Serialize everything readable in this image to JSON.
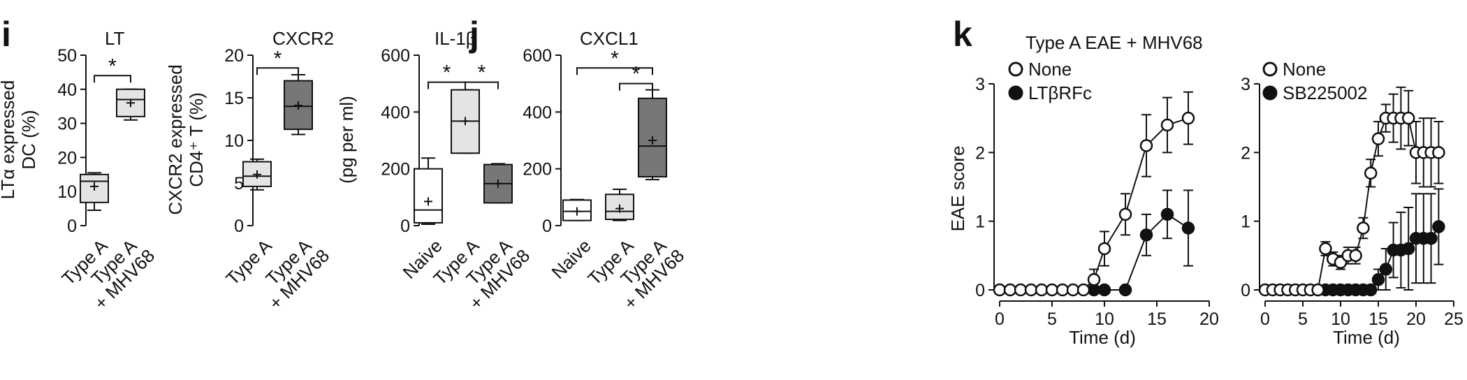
{
  "panel_labels": [
    "i",
    "j",
    "k"
  ],
  "chart_data": [
    {
      "id": "LT",
      "panel": "i",
      "type": "box",
      "title": "LT",
      "ylabel": [
        "LTα expressed",
        "DC (%)"
      ],
      "ylim": [
        0,
        50
      ],
      "yticks": [
        0,
        10,
        20,
        30,
        40,
        50
      ],
      "categories": [
        [
          "Type A"
        ],
        [
          "Type A",
          "+ MHV68"
        ]
      ],
      "boxes": [
        {
          "min": 4.5,
          "q1": 6.8,
          "median": 13.0,
          "q3": 15.0,
          "max": 15.5,
          "mean": 11.5,
          "fill": "#e4e4e4"
        },
        {
          "min": 31.0,
          "q1": 32.0,
          "median": 37.0,
          "q3": 40.0,
          "max": 40.0,
          "mean": 36.0,
          "fill": "#e4e4e4"
        }
      ],
      "significance": [
        {
          "from": 0,
          "to": 1,
          "y": 44,
          "label": "*"
        }
      ]
    },
    {
      "id": "CXCR2",
      "panel": "i",
      "type": "box",
      "title": "CXCR2",
      "ylabel": [
        "CXCR2 expressed",
        "CD4⁺ T (%)"
      ],
      "ylim": [
        0,
        20
      ],
      "yticks": [
        0,
        5,
        10,
        15,
        20
      ],
      "categories": [
        [
          "Type A"
        ],
        [
          "Type A",
          "+ MHV68"
        ]
      ],
      "boxes": [
        {
          "min": 4.2,
          "q1": 4.6,
          "median": 5.8,
          "q3": 7.5,
          "max": 7.8,
          "mean": 6.0,
          "fill": "#e4e4e4"
        },
        {
          "min": 10.7,
          "q1": 11.3,
          "median": 14.0,
          "q3": 17.0,
          "max": 17.7,
          "mean": 14.1,
          "fill": "#777777"
        }
      ],
      "significance": [
        {
          "from": 0,
          "to": 1,
          "y": 18.5,
          "label": "*"
        }
      ]
    },
    {
      "id": "IL-1b",
      "panel": "j",
      "type": "box",
      "title": "IL-1β",
      "ylabel": [
        "(pg per ml)"
      ],
      "ylim": [
        0,
        600
      ],
      "yticks": [
        0,
        200,
        400,
        600
      ],
      "categories": [
        [
          "Naive"
        ],
        [
          "Type A"
        ],
        [
          "Type A",
          "+ MHV68"
        ]
      ],
      "boxes": [
        {
          "min": 5,
          "q1": 10,
          "median": 55,
          "q3": 200,
          "max": 238,
          "mean": 85,
          "fill": "#ffffff"
        },
        {
          "min": 255,
          "q1": 255,
          "median": 368,
          "q3": 478,
          "max": 478,
          "mean": 368,
          "fill": "#e4e4e4"
        },
        {
          "min": 80,
          "q1": 80,
          "median": 148,
          "q3": 215,
          "max": 218,
          "mean": 148,
          "fill": "#777777"
        }
      ],
      "significance": [
        {
          "from": 0,
          "to": 1,
          "y": 505,
          "label": "*"
        },
        {
          "from": 1,
          "to": 2,
          "y": 505,
          "label": "*"
        }
      ]
    },
    {
      "id": "CXCL1",
      "panel": "j",
      "type": "box",
      "title": "CXCL1",
      "ylabel": [],
      "ylim": [
        0,
        600
      ],
      "yticks": [
        0,
        200,
        400,
        600
      ],
      "categories": [
        [
          "Naive"
        ],
        [
          "Type A"
        ],
        [
          "Type A",
          "+ MHV68"
        ]
      ],
      "boxes": [
        {
          "min": 18,
          "q1": 18,
          "median": 50,
          "q3": 90,
          "max": 92,
          "mean": 50,
          "fill": "#ffffff"
        },
        {
          "min": 18,
          "q1": 22,
          "median": 50,
          "q3": 110,
          "max": 128,
          "mean": 60,
          "fill": "#e4e4e4"
        },
        {
          "min": 162,
          "q1": 172,
          "median": 280,
          "q3": 448,
          "max": 478,
          "mean": 300,
          "fill": "#777777"
        }
      ],
      "significance": [
        {
          "from": 0,
          "to": 2,
          "y": 555,
          "label": "*"
        },
        {
          "from": 1,
          "to": 2,
          "y": 500,
          "label": "*"
        }
      ]
    },
    {
      "id": "EAE-LTbRFc",
      "panel": "k",
      "type": "line",
      "title": "Type A EAE + MHV68",
      "xlabel": "Time (d)",
      "ylabel": "EAE score",
      "xlim": [
        0,
        20
      ],
      "xticks": [
        0,
        5,
        10,
        15,
        20
      ],
      "ylim": [
        0,
        3
      ],
      "yticks": [
        0,
        1,
        2,
        3
      ],
      "series": [
        {
          "name": "None",
          "marker": "open",
          "x": [
            0,
            1,
            2,
            3,
            4,
            5,
            6,
            7,
            8,
            9,
            10,
            12,
            14,
            16,
            18
          ],
          "y": [
            0,
            0,
            0,
            0,
            0,
            0,
            0,
            0,
            0,
            0.15,
            0.6,
            1.1,
            2.1,
            2.4,
            2.5
          ],
          "err": [
            0,
            0,
            0,
            0,
            0,
            0,
            0,
            0,
            0,
            0.15,
            0.25,
            0.3,
            0.45,
            0.4,
            0.38
          ]
        },
        {
          "name": "LTβRFc",
          "marker": "filled",
          "x": [
            9,
            10,
            12,
            14,
            16,
            18
          ],
          "y": [
            0,
            0,
            0,
            0.8,
            1.1,
            0.9
          ],
          "err": [
            0,
            0,
            0,
            0.3,
            0.35,
            0.55
          ]
        }
      ]
    },
    {
      "id": "EAE-SB225002",
      "panel": "k",
      "type": "line",
      "title": "",
      "xlabel": "Time (d)",
      "ylabel": "",
      "xlim": [
        0,
        25
      ],
      "xticks": [
        0,
        5,
        10,
        15,
        20,
        25
      ],
      "ylim": [
        0,
        3
      ],
      "yticks": [
        0,
        1,
        2,
        3
      ],
      "series": [
        {
          "name": "None",
          "marker": "open",
          "x": [
            0,
            1,
            2,
            3,
            4,
            5,
            6,
            7,
            8,
            9,
            10,
            11,
            12,
            13,
            14,
            15,
            16,
            17,
            18,
            19,
            20,
            21,
            22,
            23
          ],
          "y": [
            0,
            0,
            0,
            0,
            0,
            0,
            0,
            0,
            0.6,
            0.45,
            0.4,
            0.5,
            0.5,
            0.9,
            1.7,
            2.2,
            2.5,
            2.5,
            2.5,
            2.5,
            2.0,
            2.0,
            2.0,
            2.0
          ],
          "err": [
            0,
            0,
            0,
            0,
            0,
            0,
            0,
            0,
            0.1,
            0.1,
            0.1,
            0.12,
            0.12,
            0.15,
            0.2,
            0.25,
            0.2,
            0.35,
            0.45,
            0.4,
            0.45,
            0.5,
            0.5,
            0.45
          ]
        },
        {
          "name": "SB225002",
          "marker": "filled",
          "x": [
            7,
            8,
            9,
            10,
            11,
            12,
            13,
            14,
            15,
            16,
            17,
            18,
            19,
            20,
            21,
            22,
            23
          ],
          "y": [
            0,
            0,
            0,
            0,
            0,
            0,
            0,
            0,
            0.15,
            0.3,
            0.58,
            0.58,
            0.6,
            0.75,
            0.75,
            0.75,
            0.92
          ],
          "err": [
            0,
            0,
            0,
            0,
            0,
            0,
            0,
            0,
            0.15,
            0.3,
            0.4,
            0.55,
            0.6,
            0.65,
            0.65,
            0.65,
            0.55
          ]
        }
      ]
    }
  ]
}
